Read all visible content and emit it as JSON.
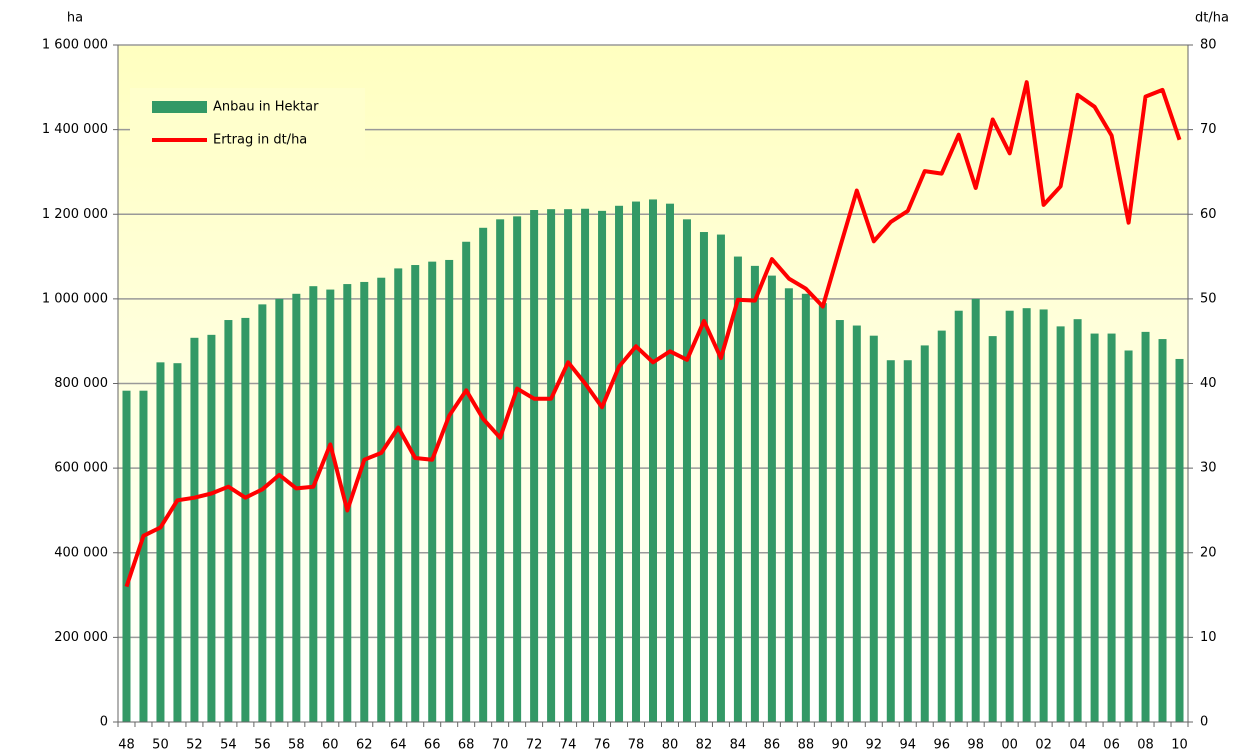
{
  "chart_data": {
    "type": "bar_line",
    "ylabel": "ha",
    "y2label": "dt/ha",
    "categories": [
      "48",
      null,
      "50",
      null,
      "52",
      null,
      "54",
      null,
      "56",
      null,
      "58",
      null,
      "60",
      null,
      "62",
      null,
      "64",
      null,
      "66",
      null,
      "68",
      null,
      "70",
      null,
      "72",
      null,
      "74",
      null,
      "76",
      null,
      "78",
      null,
      "80",
      null,
      "82",
      null,
      "84",
      null,
      "86",
      null,
      "88",
      null,
      "90",
      null,
      "92",
      null,
      "94",
      null,
      "96",
      null,
      "98",
      null,
      "00",
      null,
      "02",
      null,
      "04",
      null,
      "06",
      null,
      "08",
      null,
      "10"
    ],
    "series": [
      {
        "name": "Anbau in Hektar",
        "type": "bar",
        "color": "#339966",
        "axis": "y",
        "values": [
          783000,
          783000,
          850000,
          848000,
          908000,
          915000,
          950000,
          955000,
          987000,
          1000000,
          1012000,
          1030000,
          1022000,
          1035000,
          1040000,
          1050000,
          1072000,
          1080000,
          1088000,
          1092000,
          1135000,
          1168000,
          1188000,
          1195000,
          1210000,
          1212000,
          1212000,
          1213000,
          1208000,
          1220000,
          1230000,
          1235000,
          1225000,
          1188000,
          1158000,
          1152000,
          1100000,
          1078000,
          1055000,
          1025000,
          1012000,
          990000,
          950000,
          937000,
          913000,
          855000,
          855000,
          890000,
          925000,
          972000,
          1000000,
          912000,
          972000,
          978000,
          975000,
          935000,
          952000,
          918000,
          918000,
          878000,
          922000,
          905000,
          858000
        ]
      },
      {
        "name": "Ertrag in dt/ha",
        "type": "line",
        "color": "#ff0000",
        "axis": "y2",
        "values": [
          16,
          22,
          23,
          26.2,
          26.5,
          27,
          27.8,
          26.5,
          27.5,
          29.2,
          27.6,
          27.8,
          32.8,
          25,
          31,
          31.8,
          34.8,
          31.2,
          31,
          36.2,
          39.2,
          35.8,
          33.6,
          39.4,
          38.2,
          38.2,
          42.5,
          40,
          37.2,
          42,
          44.4,
          42.5,
          43.8,
          42.8,
          47.4,
          43,
          49.9,
          49.8,
          54.7,
          52.4,
          51.2,
          49.1,
          56,
          62.8,
          56.8,
          59.1,
          60.4,
          65.1,
          64.8,
          69.4,
          63.1,
          71.2,
          67.2,
          75.6,
          61.1,
          63.3,
          74.1,
          72.7,
          69.3,
          59,
          73.9,
          74.7,
          68.8
        ]
      }
    ],
    "ylim": [
      0,
      1600000
    ],
    "yticks": [
      0,
      {
        "value": 200000,
        "label": "200 000"
      },
      {
        "value": 400000,
        "label": "400 000"
      },
      {
        "value": 600000,
        "label": "600 000"
      },
      {
        "value": 800000,
        "label": "800 000"
      },
      {
        "value": 1000000,
        "label": "1 000 000"
      },
      {
        "value": 1200000,
        "label": "1 200 000"
      },
      {
        "value": 1400000,
        "label": "1 400 000"
      },
      {
        "value": 1600000,
        "label": "1 600 000"
      }
    ],
    "y2lim": [
      0,
      80
    ],
    "y2ticks": [
      0,
      10,
      20,
      30,
      40,
      50,
      60,
      70,
      80
    ],
    "grid": true,
    "legend": "upper left"
  }
}
